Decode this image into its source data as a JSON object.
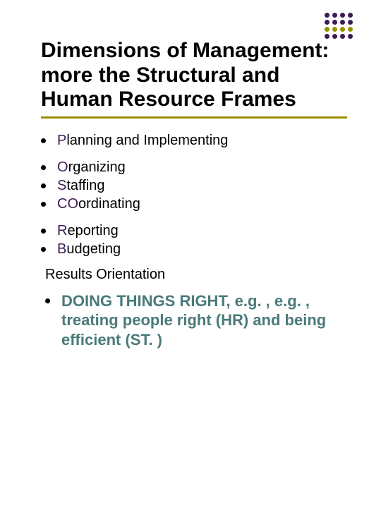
{
  "decoration": {
    "rows": 4,
    "cols": 4,
    "dot_colors": [
      "#3c1a57",
      "#3c1a57",
      "#9a8f00",
      "#3c1a57"
    ]
  },
  "title": "Dimensions of Management: more the Structural and Human Resource Frames",
  "title_color": "#000000",
  "underline_color": "#9a8f00",
  "groups": [
    [
      {
        "prefix": "P",
        "rest": "lanning and Implementing"
      }
    ],
    [
      {
        "prefix": "O",
        "rest": "rganizing"
      },
      {
        "prefix": "S",
        "rest": "taffing"
      },
      {
        "prefix": "CO",
        "rest": "ordinating"
      }
    ],
    [
      {
        "prefix": "R",
        "rest": "eporting"
      },
      {
        "prefix": "B",
        "rest": "udgeting"
      }
    ]
  ],
  "prefix_color": "#3c1a57",
  "results_label": "Results Orientation",
  "final": "DOING THINGS RIGHT, e.g. , e.g. , treating people right (HR) and  being efficient (ST. )",
  "final_color": "#4a7a7a",
  "bullet_color": "#000000"
}
